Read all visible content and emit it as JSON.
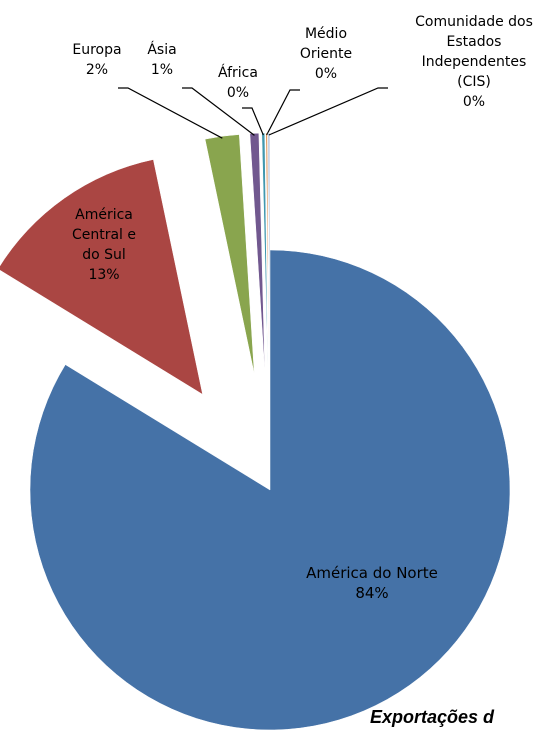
{
  "chart_data": {
    "type": "pie",
    "title": "Exportações d",
    "categories": [
      "América do Norte",
      "América Central e do Sul",
      "Europa",
      "Ásia",
      "África",
      "Médio Oriente",
      "Comunidade dos Estados Independentes (CIS)"
    ],
    "values": [
      84,
      13,
      2.3,
      0.6,
      0.2,
      0.1,
      0.1
    ],
    "value_labels": [
      "84%",
      "13%",
      "2%",
      "1%",
      "0%",
      "0%",
      "0%"
    ],
    "colors": [
      "#4572a7",
      "#aa4643",
      "#89a54e",
      "#71588f",
      "#4198af",
      "#db843d",
      "#93a9cf"
    ]
  }
}
